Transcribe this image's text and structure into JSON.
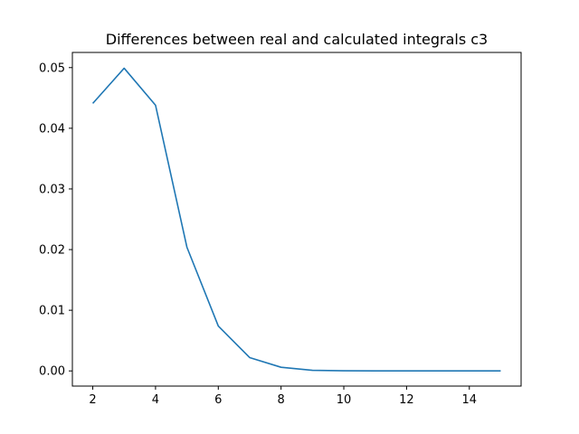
{
  "chart_data": {
    "type": "line",
    "title": "Differences between real and calculated integrals c3",
    "xlabel": "",
    "ylabel": "",
    "xlim": [
      1.35,
      15.65
    ],
    "ylim": [
      -0.0025,
      0.0525
    ],
    "grid": false,
    "x_ticks": [
      2,
      4,
      6,
      8,
      10,
      12,
      14
    ],
    "x_tick_labels": [
      "2",
      "4",
      "6",
      "8",
      "10",
      "12",
      "14"
    ],
    "y_ticks": [
      0.0,
      0.01,
      0.02,
      0.03,
      0.04,
      0.05
    ],
    "y_tick_labels": [
      "0.00",
      "0.01",
      "0.02",
      "0.03",
      "0.04",
      "0.05"
    ],
    "series": [
      {
        "name": "c3",
        "color": "#1f77b4",
        "x": [
          2,
          3,
          4,
          5,
          6,
          7,
          8,
          9,
          10,
          11,
          12,
          13,
          14,
          15
        ],
        "values": [
          0.0441,
          0.0499,
          0.0438,
          0.0204,
          0.0074,
          0.0022,
          0.0006,
          0.0001,
          3e-05,
          1e-05,
          0.0,
          0.0,
          0.0,
          0.0
        ]
      }
    ]
  }
}
